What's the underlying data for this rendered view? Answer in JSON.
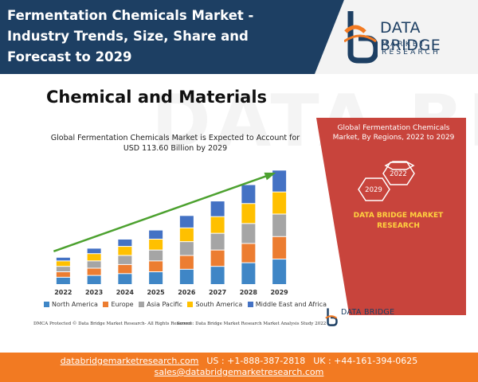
{
  "header": {
    "title": "Fermentation Chemicals Market - Industry Trends, Size, Share and Forecast to 2029",
    "brand_name": "DATA BRIDGE",
    "brand_sub": "MARKET RESEARCH",
    "colors": {
      "background": "#1d3f63",
      "title": "#ffffff"
    }
  },
  "section": {
    "title": "Chemical and Materials"
  },
  "chart_data": {
    "type": "bar",
    "stacked": true,
    "title": "Global Fermentation Chemicals Market is Expected to Account for USD 113.60 Billion by 2029",
    "xlabel": "",
    "ylabel": "",
    "categories": [
      "2022",
      "2023",
      "2024",
      "2025",
      "2026",
      "2027",
      "2028",
      "2029"
    ],
    "series": [
      {
        "name": "North America",
        "color": "#3f86c6",
        "values": [
          2,
          2.5,
          3,
          3.5,
          4.2,
          5,
          6,
          7
        ]
      },
      {
        "name": "Europe",
        "color": "#ec7d31",
        "values": [
          1.5,
          2,
          2.5,
          3,
          3.8,
          4.5,
          5.3,
          6.2
        ]
      },
      {
        "name": "Asia Pacific",
        "color": "#a5a5a5",
        "values": [
          1.5,
          2,
          2.5,
          3,
          3.8,
          4.6,
          5.5,
          6.2
        ]
      },
      {
        "name": "South America",
        "color": "#ffc000",
        "values": [
          1.5,
          2,
          2.5,
          3,
          3.8,
          4.6,
          5.5,
          6.1
        ]
      },
      {
        "name": "Middle East and Africa",
        "color": "#4472c4",
        "values": [
          1,
          1.5,
          2,
          2.5,
          3.4,
          4.3,
          5.2,
          6
        ]
      }
    ],
    "ylim": [
      0,
      32
    ],
    "trend_arrow": true,
    "trend_color": "#4ca12f",
    "grid": false,
    "legend": "bottom"
  },
  "notes": {
    "dmca": "DMCA Protected © Data Bridge Market Research- All Rights Reserved",
    "source": "Source: Data Bridge Market Research Market Analysis Study 2022"
  },
  "panel": {
    "title": "Global Fermentation Chemicals Market, By Regions, 2022 to 2029",
    "year_start": "2029",
    "year_end": "2022",
    "brand": "DATA BRIDGE MARKET RESEARCH",
    "color": "#c8443c",
    "brand_color": "#ffd23f"
  },
  "small_logo": {
    "text": "DATA BRIDGE"
  },
  "footer": {
    "website": "databridgemarketresearch.com",
    "us_phone": "US : +1-888-387-2818",
    "uk_phone": "UK : +44-161-394-0625",
    "email": "sales@databridgemarketresearch.com",
    "color": "#f27a22"
  }
}
